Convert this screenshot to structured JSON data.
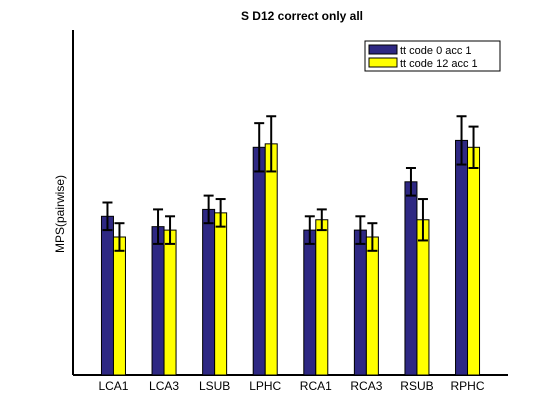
{
  "chart_data": {
    "type": "bar",
    "title": "S D12 correct only all",
    "xlabel": "",
    "ylabel": "MPS(pairwise)",
    "ylim": [
      0,
      1
    ],
    "yticks": "none",
    "grid": false,
    "legend_position": "top-right",
    "categories": [
      "LCA1",
      "LCA3",
      "LSUB",
      "LPHC",
      "RCA1",
      "RCA3",
      "RSUB",
      "RPHC"
    ],
    "series": [
      {
        "name": "tt code 0 acc 1",
        "color": "#2e2883",
        "values": [
          0.46,
          0.43,
          0.48,
          0.66,
          0.42,
          0.42,
          0.56,
          0.68
        ],
        "errors": [
          0.04,
          0.05,
          0.04,
          0.07,
          0.04,
          0.04,
          0.04,
          0.07
        ]
      },
      {
        "name": "tt code 12 acc 1",
        "color": "#ffff00",
        "values": [
          0.4,
          0.42,
          0.47,
          0.67,
          0.45,
          0.4,
          0.45,
          0.66
        ],
        "errors": [
          0.04,
          0.04,
          0.04,
          0.08,
          0.03,
          0.04,
          0.06,
          0.06
        ]
      }
    ]
  }
}
